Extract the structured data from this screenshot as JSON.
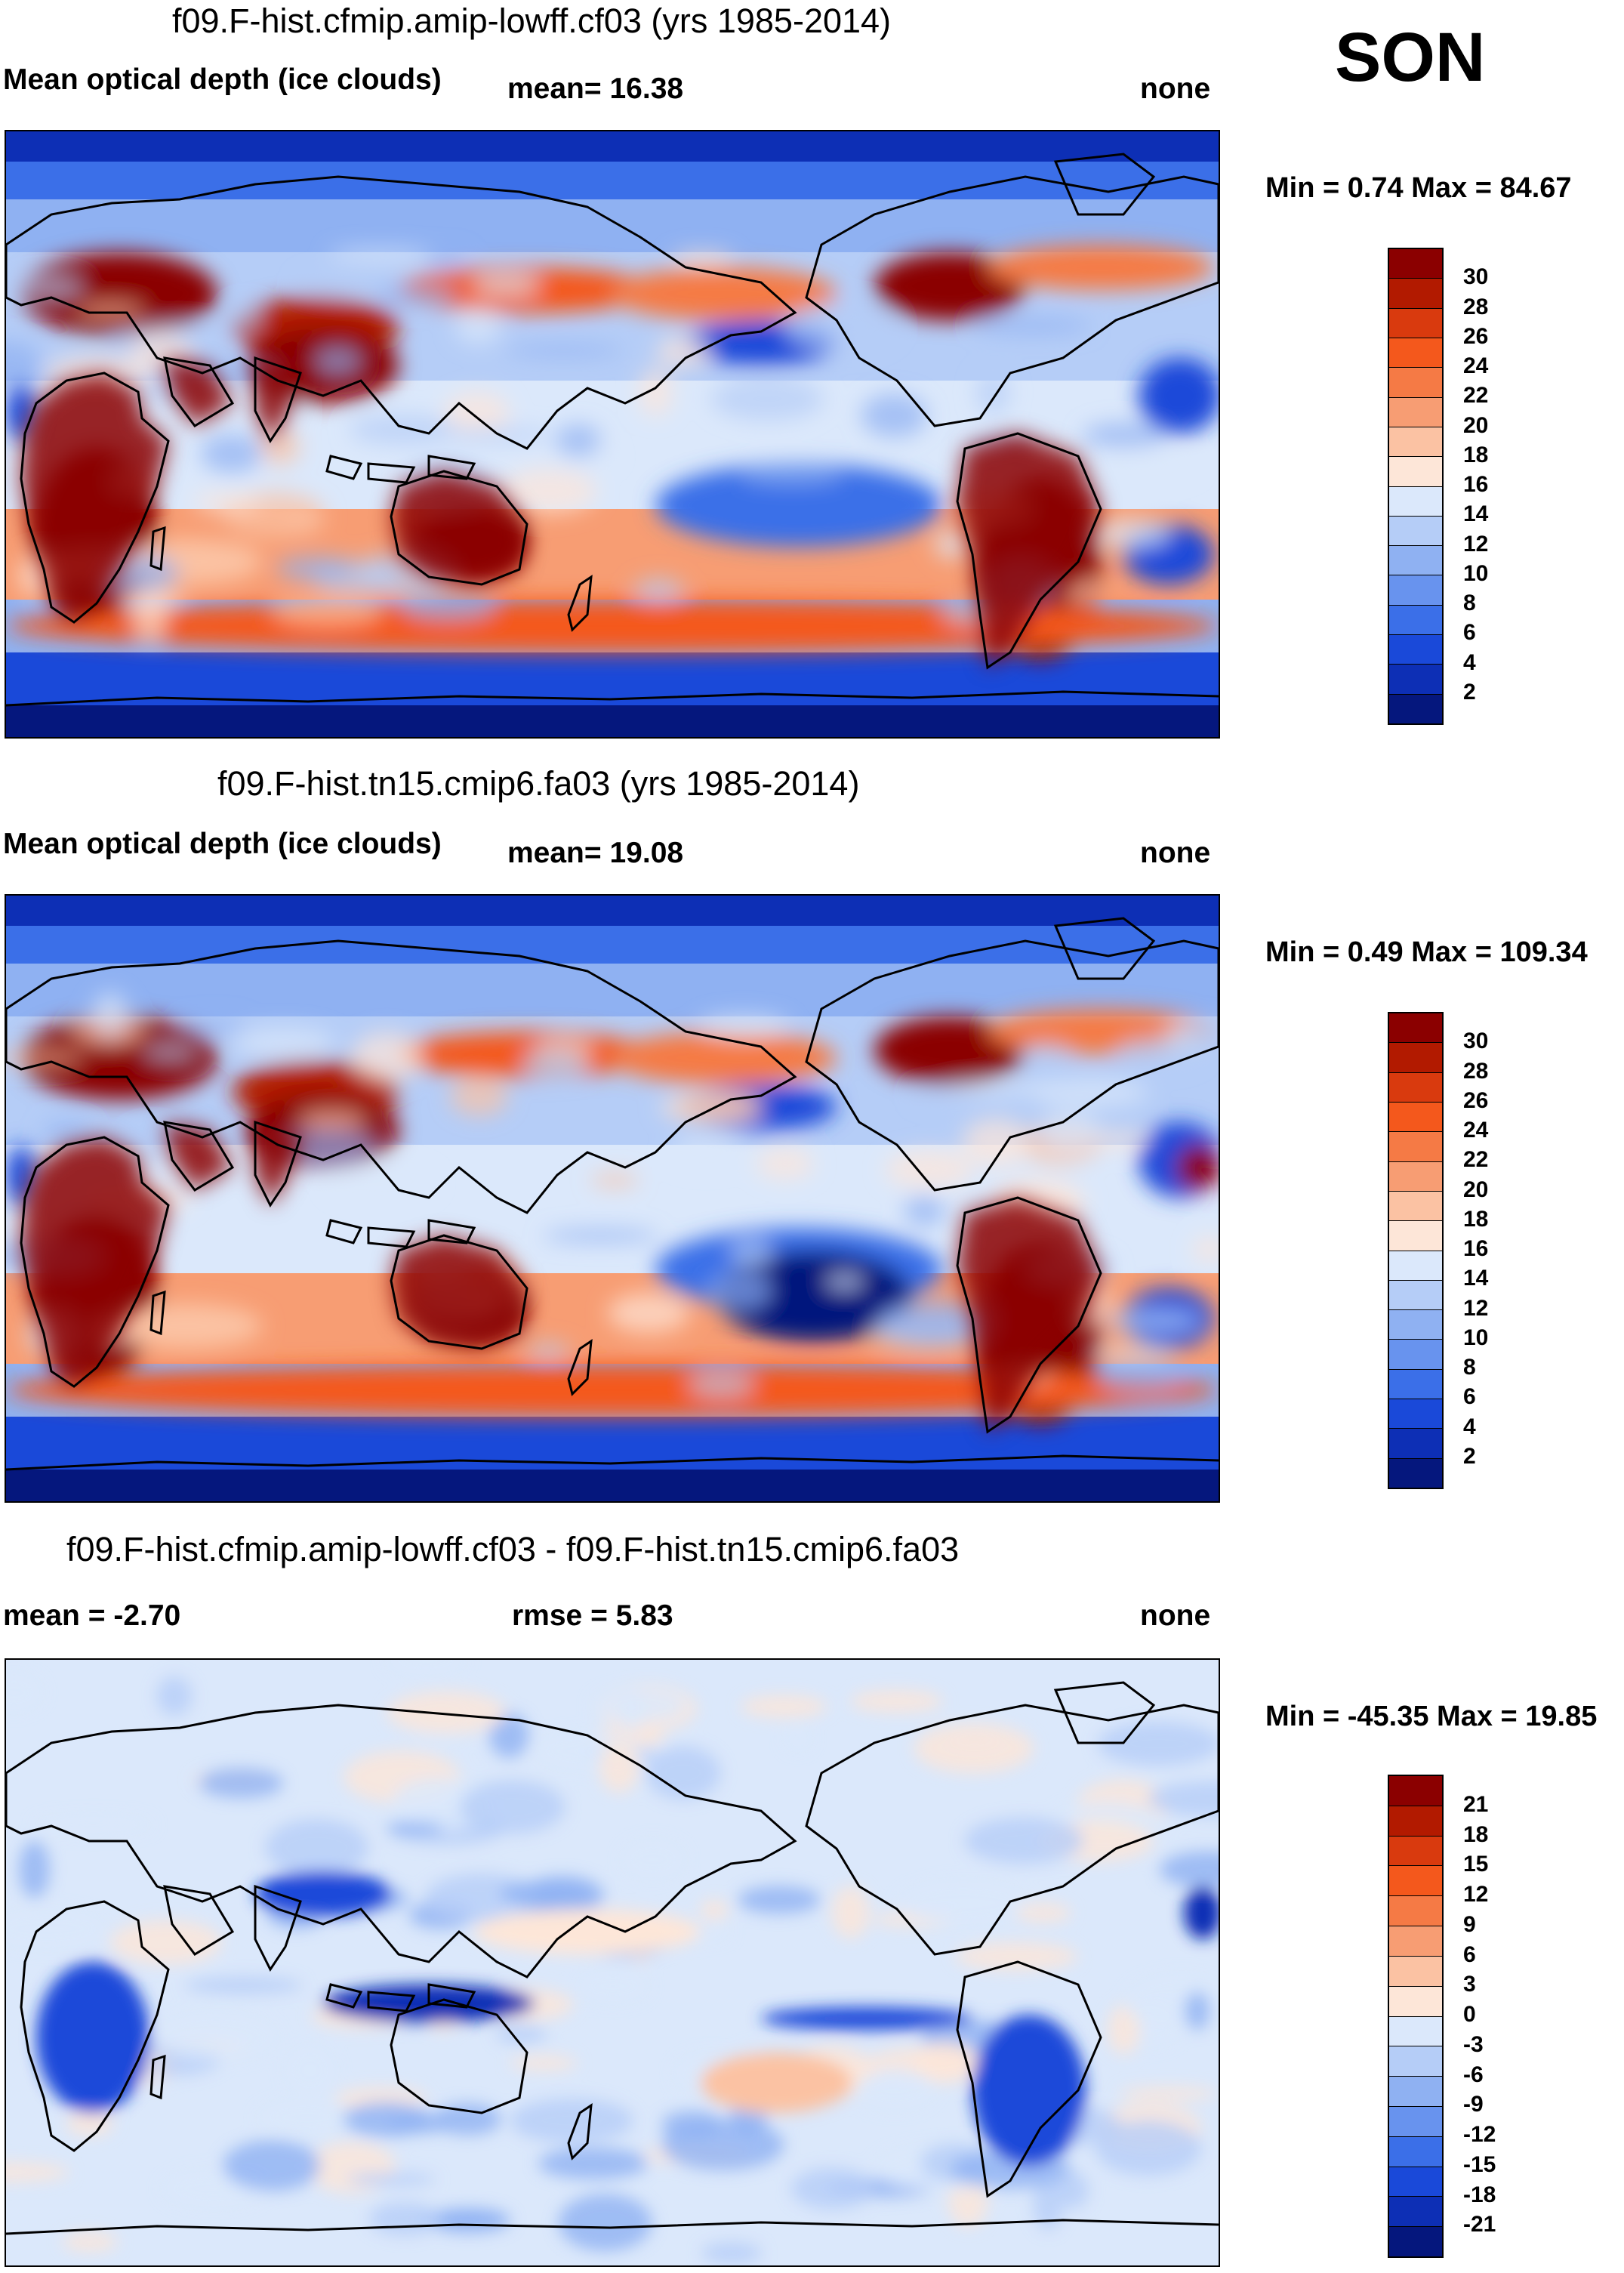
{
  "season": "SON",
  "panels": [
    {
      "id": "top",
      "title": "f09.F-hist.cfmip.amip-lowff.cf03 (yrs 1985-2014)",
      "variable": "Mean optical depth (ice clouds)",
      "mean_text": "mean=  16.38",
      "units": "none",
      "minmax": "Min =   0.74 Max =  84.67",
      "colorbar": {
        "labels": [
          "30",
          "28",
          "26",
          "24",
          "22",
          "20",
          "18",
          "16",
          "14",
          "12",
          "10",
          "8",
          "6",
          "4",
          "2"
        ],
        "colors": [
          "#8b0000",
          "#b21a00",
          "#d93a0e",
          "#f4581c",
          "#f57a45",
          "#f79d73",
          "#fbc2a3",
          "#fde6d8",
          "#dbe8fb",
          "#b5cdf7",
          "#8fb1f2",
          "#6893ee",
          "#3b6fe8",
          "#1a49d9",
          "#0d2fb5",
          "#05177d"
        ]
      }
    },
    {
      "id": "middle",
      "title": "f09.F-hist.tn15.cmip6.fa03 (yrs 1985-2014)",
      "variable": "Mean optical depth (ice clouds)",
      "mean_text": "mean=  19.08",
      "units": "none",
      "minmax": "Min =   0.49 Max = 109.34",
      "colorbar": {
        "labels": [
          "30",
          "28",
          "26",
          "24",
          "22",
          "20",
          "18",
          "16",
          "14",
          "12",
          "10",
          "8",
          "6",
          "4",
          "2"
        ],
        "colors": [
          "#8b0000",
          "#b21a00",
          "#d93a0e",
          "#f4581c",
          "#f57a45",
          "#f79d73",
          "#fbc2a3",
          "#fde6d8",
          "#dbe8fb",
          "#b5cdf7",
          "#8fb1f2",
          "#6893ee",
          "#3b6fe8",
          "#1a49d9",
          "#0d2fb5",
          "#05177d"
        ]
      }
    },
    {
      "id": "bottom",
      "title": "f09.F-hist.cfmip.amip-lowff.cf03 - f09.F-hist.tn15.cmip6.fa03",
      "mean_text": "mean =  -2.70",
      "rmse_text": "rmse =    5.83",
      "units": "none",
      "minmax": "Min = -45.35 Max =  19.85",
      "colorbar": {
        "labels": [
          "21",
          "18",
          "15",
          "12",
          "9",
          "6",
          "3",
          "0",
          "-3",
          "-6",
          "-9",
          "-12",
          "-15",
          "-18",
          "-21"
        ],
        "colors": [
          "#8b0000",
          "#b21a00",
          "#d93a0e",
          "#f4581c",
          "#f57a45",
          "#f79d73",
          "#fbc2a3",
          "#fde6d8",
          "#dbe8fb",
          "#b5cdf7",
          "#8fb1f2",
          "#6893ee",
          "#3b6fe8",
          "#1a49d9",
          "#0d2fb5",
          "#05177d"
        ]
      }
    }
  ]
}
